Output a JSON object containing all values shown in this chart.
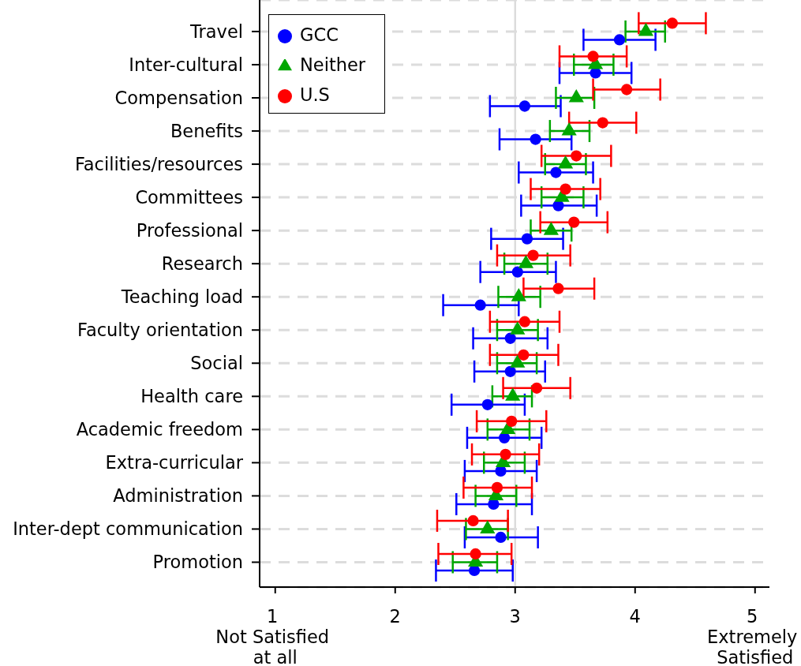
{
  "chart_data": {
    "type": "scatter",
    "orientation": "horizontal",
    "categories": [
      "Travel",
      "Inter-cultural",
      "Compensation",
      "Benefits",
      "Facilities/resources",
      "Committees",
      "Professional",
      "Research",
      "Teaching load",
      "Faculty orientation",
      "Social",
      "Health care",
      "Academic freedom",
      "Extra-curricular",
      "Administration",
      "Inter-dept communication",
      "Promotion"
    ],
    "series": [
      {
        "name": "GCC",
        "color": "#0000ff",
        "marker": "circle",
        "values": [
          3.87,
          3.67,
          3.08,
          3.17,
          3.34,
          3.36,
          3.1,
          3.02,
          2.71,
          2.96,
          2.96,
          2.77,
          2.91,
          2.88,
          2.82,
          2.88,
          2.66
        ],
        "errors": [
          [
            3.57,
            4.17
          ],
          [
            3.37,
            3.97
          ],
          [
            2.79,
            3.38
          ],
          [
            2.87,
            3.47
          ],
          [
            3.03,
            3.65
          ],
          [
            3.05,
            3.68
          ],
          [
            2.8,
            3.4
          ],
          [
            2.71,
            3.34
          ],
          [
            2.4,
            3.03
          ],
          [
            2.65,
            3.27
          ],
          [
            2.66,
            3.25
          ],
          [
            2.47,
            3.08
          ],
          [
            2.6,
            3.22
          ],
          [
            2.58,
            3.18
          ],
          [
            2.51,
            3.14
          ],
          [
            2.58,
            3.19
          ],
          [
            2.34,
            2.98
          ]
        ]
      },
      {
        "name": "Neither",
        "color": "#00a600",
        "marker": "triangle",
        "values": [
          4.09,
          3.67,
          3.51,
          3.45,
          3.42,
          3.39,
          3.3,
          3.09,
          3.03,
          3.02,
          3.02,
          2.98,
          2.94,
          2.9,
          2.84,
          2.77,
          2.67
        ],
        "errors": [
          [
            3.92,
            4.25
          ],
          [
            3.49,
            3.82
          ],
          [
            3.34,
            3.66
          ],
          [
            3.29,
            3.62
          ],
          [
            3.25,
            3.59
          ],
          [
            3.22,
            3.57
          ],
          [
            3.13,
            3.47
          ],
          [
            2.91,
            3.27
          ],
          [
            2.86,
            3.21
          ],
          [
            2.85,
            3.19
          ],
          [
            2.85,
            3.18
          ],
          [
            2.81,
            3.14
          ],
          [
            2.77,
            3.12
          ],
          [
            2.74,
            3.08
          ],
          [
            2.67,
            3.01
          ],
          [
            2.59,
            2.94
          ],
          [
            2.48,
            2.85
          ]
        ]
      },
      {
        "name": "U.S",
        "color": "#ff0000",
        "marker": "circle",
        "values": [
          4.31,
          3.65,
          3.93,
          3.73,
          3.51,
          3.42,
          3.49,
          3.15,
          3.36,
          3.08,
          3.07,
          3.18,
          2.97,
          2.92,
          2.85,
          2.65,
          2.67
        ],
        "errors": [
          [
            4.03,
            4.59
          ],
          [
            3.37,
            3.93
          ],
          [
            3.65,
            4.21
          ],
          [
            3.45,
            4.01
          ],
          [
            3.22,
            3.8
          ],
          [
            3.13,
            3.71
          ],
          [
            3.21,
            3.77
          ],
          [
            2.85,
            3.46
          ],
          [
            3.07,
            3.66
          ],
          [
            2.79,
            3.37
          ],
          [
            2.79,
            3.36
          ],
          [
            2.9,
            3.46
          ],
          [
            2.68,
            3.26
          ],
          [
            2.64,
            3.2
          ],
          [
            2.57,
            3.14
          ],
          [
            2.35,
            2.94
          ],
          [
            2.36,
            2.97
          ]
        ]
      }
    ],
    "xlim": [
      0.87,
      5.12
    ],
    "xticks": [
      {
        "value": 1,
        "label": "1\nNot Satisfied\nat all"
      },
      2,
      3,
      4,
      {
        "value": 5,
        "label": "5\nExtremely\nSatisfied"
      }
    ],
    "grid": "y",
    "legend": "top left",
    "ref_lines": [
      {
        "axis": "x",
        "value": 3,
        "color": "#dcdcdc"
      }
    ]
  }
}
